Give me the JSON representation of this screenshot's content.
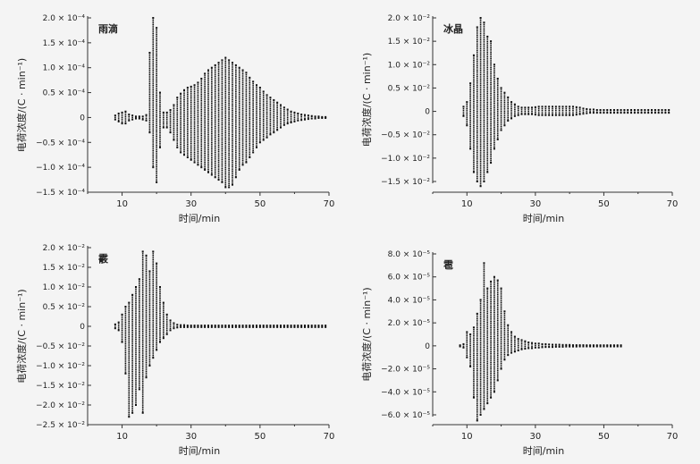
{
  "chart_data": [
    {
      "type": "scatter",
      "title": "雨滴",
      "xlabel": "时间/min",
      "ylabel": "电荷浓度/(C · min⁻¹)",
      "xlim": [
        0,
        70
      ],
      "ylim": [
        -0.00015,
        0.0002
      ],
      "x_ticks": [
        "10",
        "30",
        "50",
        "70"
      ],
      "y_ticks": [
        "2.0 × 10⁻⁴",
        "1.5 × 10⁻⁴",
        "1.0 × 10⁻⁴",
        "0.5 × 10⁻⁴",
        "0",
        "−0.5 × 10⁻⁴",
        "−1.0 × 10⁻⁴",
        "−1.5 × 10⁻⁴"
      ],
      "y_tick_values": [
        0.0002,
        0.00015,
        0.0001,
        5e-05,
        0,
        -5e-05,
        -0.0001,
        -0.00015
      ],
      "series": [
        {
          "x": [
            8,
            9,
            10,
            11,
            12,
            13,
            14,
            15,
            16,
            17,
            18,
            19,
            20,
            21,
            22,
            23,
            24,
            25,
            26,
            27,
            28,
            29,
            30,
            31,
            32,
            33,
            34,
            35,
            36,
            37,
            38,
            39,
            40,
            41,
            42,
            43,
            44,
            45,
            46,
            47,
            48,
            49,
            50,
            51,
            52,
            53,
            54,
            55,
            56,
            57,
            58,
            59,
            60,
            61,
            62,
            63,
            64,
            65,
            66,
            67,
            68,
            69
          ],
          "ymax": [
            4e-06,
            8e-06,
            1e-05,
            1.2e-05,
            6e-06,
            4e-06,
            2e-06,
            2e-06,
            2e-06,
            5e-06,
            0.00013,
            0.0002,
            0.00018,
            5e-05,
            1e-05,
            1e-05,
            1.5e-05,
            2.5e-05,
            4e-05,
            4.8e-05,
            5.5e-05,
            6e-05,
            6.2e-05,
            6.5e-05,
            7e-05,
            7.8e-05,
            8.8e-05,
            9.5e-05,
            0.0001,
            0.000105,
            0.00011,
            0.000115,
            0.00012,
            0.000115,
            0.00011,
            0.000105,
            0.0001,
            9.5e-05,
            9e-05,
            8e-05,
            7.2e-05,
            6.5e-05,
            6e-05,
            5.2e-05,
            4.5e-05,
            4e-05,
            3.5e-05,
            3e-05,
            2.5e-05,
            2e-05,
            1.6e-05,
            1.2e-05,
            1e-05,
            8e-06,
            6e-06,
            5e-06,
            4e-06,
            3e-06,
            2e-06,
            2e-06,
            1e-06,
            1e-06
          ],
          "ymin": [
            -4e-06,
            -8e-06,
            -1.2e-05,
            -1.2e-05,
            -6e-06,
            -4e-06,
            -2e-06,
            -2e-06,
            -4e-06,
            -6e-06,
            -3e-05,
            -0.0001,
            -0.00013,
            -6e-05,
            -2e-05,
            -2e-05,
            -3e-05,
            -4.5e-05,
            -6e-05,
            -7e-05,
            -7.5e-05,
            -8e-05,
            -8.5e-05,
            -9e-05,
            -9.5e-05,
            -0.0001,
            -0.000105,
            -0.00011,
            -0.000115,
            -0.00012,
            -0.000125,
            -0.00013,
            -0.00014,
            -0.00014,
            -0.000135,
            -0.00012,
            -0.000105,
            -9.5e-05,
            -9e-05,
            -8e-05,
            -7e-05,
            -6e-05,
            -5e-05,
            -4.5e-05,
            -4e-05,
            -3.4e-05,
            -3e-05,
            -2.5e-05,
            -2e-05,
            -1.5e-05,
            -1.2e-05,
            -1e-05,
            -8e-06,
            -6e-06,
            -5e-06,
            -4e-06,
            -3e-06,
            -2e-06,
            -2e-06,
            -1e-06,
            -1e-06,
            -1e-06
          ]
        }
      ]
    },
    {
      "type": "scatter",
      "title": "冰晶",
      "xlabel": "时间/min",
      "ylabel": "电荷浓度/(C · min⁻¹)",
      "xlim": [
        0,
        70
      ],
      "ylim": [
        -0.015,
        0.02
      ],
      "x_ticks": [
        "10",
        "30",
        "50",
        "70"
      ],
      "y_ticks": [
        "2.0 × 10⁻²",
        "1.5 × 10⁻²",
        "1.0 × 10⁻²",
        "0.5 × 10⁻²",
        "0",
        "−0.5 × 10⁻²",
        "−1.0 × 10⁻²",
        "−1.5 × 10⁻²"
      ],
      "y_tick_values": [
        0.02,
        0.015,
        0.01,
        0.005,
        0,
        -0.005,
        -0.01,
        -0.015
      ],
      "series": [
        {
          "x": [
            9,
            10,
            11,
            12,
            13,
            14,
            15,
            16,
            17,
            18,
            19,
            20,
            21,
            22,
            23,
            24,
            25,
            26,
            27,
            28,
            29,
            30,
            31,
            32,
            33,
            34,
            35,
            36,
            37,
            38,
            39,
            40,
            41,
            42,
            43,
            44,
            45,
            46,
            47,
            48,
            49,
            50,
            51,
            52,
            53,
            54,
            55,
            56,
            57,
            58,
            59,
            60,
            61,
            62,
            63,
            64,
            65,
            66,
            67,
            68,
            69
          ],
          "ymax": [
            0.001,
            0.002,
            0.006,
            0.012,
            0.018,
            0.02,
            0.019,
            0.016,
            0.015,
            0.01,
            0.007,
            0.005,
            0.004,
            0.003,
            0.002,
            0.0015,
            0.001,
            0.0008,
            0.0008,
            0.0008,
            0.0008,
            0.0009,
            0.001,
            0.001,
            0.001,
            0.001,
            0.001,
            0.001,
            0.001,
            0.001,
            0.001,
            0.001,
            0.001,
            0.0009,
            0.0008,
            0.0006,
            0.0005,
            0.0004,
            0.0004,
            0.0003,
            0.0003,
            0.0003,
            0.0003,
            0.0003,
            0.0003,
            0.0003,
            0.0003,
            0.0003,
            0.0003,
            0.0003,
            0.0003,
            0.0003,
            0.0003,
            0.0003,
            0.0003,
            0.0003,
            0.0003,
            0.0003,
            0.0003,
            0.0003,
            0.0003
          ],
          "ymin": [
            -0.001,
            -0.003,
            -0.008,
            -0.013,
            -0.015,
            -0.016,
            -0.015,
            -0.013,
            -0.011,
            -0.008,
            -0.006,
            -0.004,
            -0.003,
            -0.002,
            -0.0015,
            -0.001,
            -0.0008,
            -0.0006,
            -0.0006,
            -0.0006,
            -0.0006,
            -0.0007,
            -0.0008,
            -0.0008,
            -0.0008,
            -0.0008,
            -0.0008,
            -0.0008,
            -0.0008,
            -0.0008,
            -0.0008,
            -0.0008,
            -0.0008,
            -0.0007,
            -0.0006,
            -0.0005,
            -0.0004,
            -0.0003,
            -0.0003,
            -0.0003,
            -0.0003,
            -0.0003,
            -0.0003,
            -0.0003,
            -0.0003,
            -0.0003,
            -0.0003,
            -0.0003,
            -0.0003,
            -0.0003,
            -0.0003,
            -0.0003,
            -0.0003,
            -0.0003,
            -0.0003,
            -0.0003,
            -0.0003,
            -0.0003,
            -0.0003,
            -0.0003,
            -0.0003
          ]
        }
      ]
    },
    {
      "type": "scatter",
      "title": "霰",
      "xlabel": "时间/min",
      "ylabel": "电荷浓度/(C · min⁻¹)",
      "xlim": [
        0,
        70
      ],
      "ylim": [
        -0.025,
        0.02
      ],
      "x_ticks": [
        "10",
        "30",
        "50",
        "70"
      ],
      "y_ticks": [
        "2.0 × 10⁻²",
        "1.5 × 10⁻²",
        "1.0 × 10⁻²",
        "0.5 × 10⁻²",
        "0",
        "−0.5 × 10⁻²",
        "−1.0 × 10⁻²",
        "−1.5 × 10⁻²",
        "−2.0 × 10⁻²",
        "−2.5 × 10⁻²"
      ],
      "y_tick_values": [
        0.02,
        0.015,
        0.01,
        0.005,
        0,
        -0.005,
        -0.01,
        -0.015,
        -0.02,
        -0.025
      ],
      "series": [
        {
          "x": [
            8,
            9,
            10,
            11,
            12,
            13,
            14,
            15,
            16,
            17,
            18,
            19,
            20,
            21,
            22,
            23,
            24,
            25,
            26,
            27,
            28,
            29,
            30,
            31,
            32,
            33,
            34,
            35,
            36,
            37,
            38,
            39,
            40,
            41,
            42,
            43,
            44,
            45,
            46,
            47,
            48,
            49,
            50,
            51,
            52,
            53,
            54,
            55,
            56,
            57,
            58,
            59,
            60,
            61,
            62,
            63,
            64,
            65,
            66,
            67,
            68,
            69
          ],
          "ymax": [
            0.0005,
            0.001,
            0.003,
            0.005,
            0.006,
            0.008,
            0.01,
            0.012,
            0.019,
            0.018,
            0.014,
            0.019,
            0.016,
            0.01,
            0.006,
            0.003,
            0.0015,
            0.0008,
            0.0004,
            0.0003,
            0.0003,
            0.0002,
            0.0002,
            0.0002,
            0.0002,
            0.0002,
            0.0002,
            0.0002,
            0.0002,
            0.0002,
            0.0002,
            0.0002,
            0.0002,
            0.0002,
            0.0002,
            0.0002,
            0.0002,
            0.0002,
            0.0002,
            0.0002,
            0.0002,
            0.0002,
            0.0002,
            0.0002,
            0.0002,
            0.0002,
            0.0002,
            0.0002,
            0.0002,
            0.0002,
            0.0002,
            0.0002,
            0.0002,
            0.0002,
            0.0002,
            0.0002,
            0.0002,
            0.0002,
            0.0002,
            0.0002,
            0.0002,
            0.0002
          ],
          "ymin": [
            -0.0005,
            -0.001,
            -0.004,
            -0.012,
            -0.023,
            -0.022,
            -0.02,
            -0.016,
            -0.022,
            -0.013,
            -0.01,
            -0.008,
            -0.006,
            -0.004,
            -0.003,
            -0.002,
            -0.001,
            -0.0005,
            -0.0003,
            -0.0002,
            -0.0002,
            -0.0002,
            -0.0002,
            -0.0002,
            -0.0002,
            -0.0002,
            -0.0002,
            -0.0002,
            -0.0002,
            -0.0002,
            -0.0002,
            -0.0002,
            -0.0002,
            -0.0002,
            -0.0002,
            -0.0002,
            -0.0002,
            -0.0002,
            -0.0002,
            -0.0002,
            -0.0002,
            -0.0002,
            -0.0002,
            -0.0002,
            -0.0002,
            -0.0002,
            -0.0002,
            -0.0002,
            -0.0002,
            -0.0002,
            -0.0002,
            -0.0002,
            -0.0002,
            -0.0002,
            -0.0002,
            -0.0002,
            -0.0002,
            -0.0002,
            -0.0002,
            -0.0002,
            -0.0002,
            -0.0002
          ]
        }
      ]
    },
    {
      "type": "scatter",
      "title": "雹",
      "xlabel": "时间/min",
      "ylabel": "电荷浓度/(C · min⁻¹)",
      "xlim": [
        0,
        70
      ],
      "ylim": [
        -6e-05,
        8e-05
      ],
      "x_ticks": [
        "10",
        "30",
        "50",
        "70"
      ],
      "y_ticks": [
        "8.0 × 10⁻⁵",
        "6.0 × 10⁻⁵",
        "4.0 × 10⁻⁵",
        "2.0 × 10⁻⁵",
        "0",
        "−2.0 × 10⁻⁵",
        "−4.0 × 10⁻⁵",
        "−6.0 × 10⁻⁵"
      ],
      "y_tick_values": [
        8e-05,
        6e-05,
        4e-05,
        2e-05,
        0,
        -2e-05,
        -4e-05,
        -6e-05
      ],
      "series": [
        {
          "x": [
            8,
            9,
            10,
            11,
            12,
            13,
            14,
            15,
            16,
            17,
            18,
            19,
            20,
            21,
            22,
            23,
            24,
            25,
            26,
            27,
            28,
            29,
            30,
            31,
            32,
            33,
            34,
            35,
            36,
            37,
            38,
            39,
            40,
            41,
            42,
            43,
            44,
            45,
            46,
            47,
            48,
            49,
            50,
            51,
            52,
            53,
            54,
            55
          ],
          "ymax": [
            5e-07,
            1.5e-06,
            1.2e-05,
            1e-05,
            1.6e-05,
            2.8e-05,
            4e-05,
            7.2e-05,
            5e-05,
            5.6e-05,
            6e-05,
            5.7e-05,
            5e-05,
            3e-05,
            1.8e-05,
            1.2e-05,
            8e-06,
            6e-06,
            5e-06,
            4e-06,
            3e-06,
            2.5e-06,
            2e-06,
            2e-06,
            1.5e-06,
            1.5e-06,
            1.2e-06,
            1e-06,
            1e-06,
            1e-06,
            8e-07,
            8e-07,
            8e-07,
            6e-07,
            6e-07,
            6e-07,
            6e-07,
            5e-07,
            5e-07,
            5e-07,
            5e-07,
            5e-07,
            5e-07,
            5e-07,
            5e-07,
            5e-07,
            5e-07,
            5e-07
          ],
          "ymin": [
            -5e-07,
            -1.5e-06,
            -1e-05,
            -1.8e-05,
            -4.5e-05,
            -6.5e-05,
            -6e-05,
            -5.5e-05,
            -5e-05,
            -4.5e-05,
            -4e-05,
            -3e-05,
            -2e-05,
            -1.2e-05,
            -8e-06,
            -6e-06,
            -5e-06,
            -4e-06,
            -3e-06,
            -2.5e-06,
            -2e-06,
            -2e-06,
            -1.5e-06,
            -1.5e-06,
            -1.2e-06,
            -1e-06,
            -1e-06,
            -1e-06,
            -8e-07,
            -8e-07,
            -8e-07,
            -6e-07,
            -6e-07,
            -6e-07,
            -6e-07,
            -5e-07,
            -5e-07,
            -5e-07,
            -5e-07,
            -5e-07,
            -5e-07,
            -5e-07,
            -5e-07,
            -5e-07,
            -5e-07,
            -5e-07,
            -5e-07,
            -5e-07
          ]
        }
      ]
    }
  ]
}
